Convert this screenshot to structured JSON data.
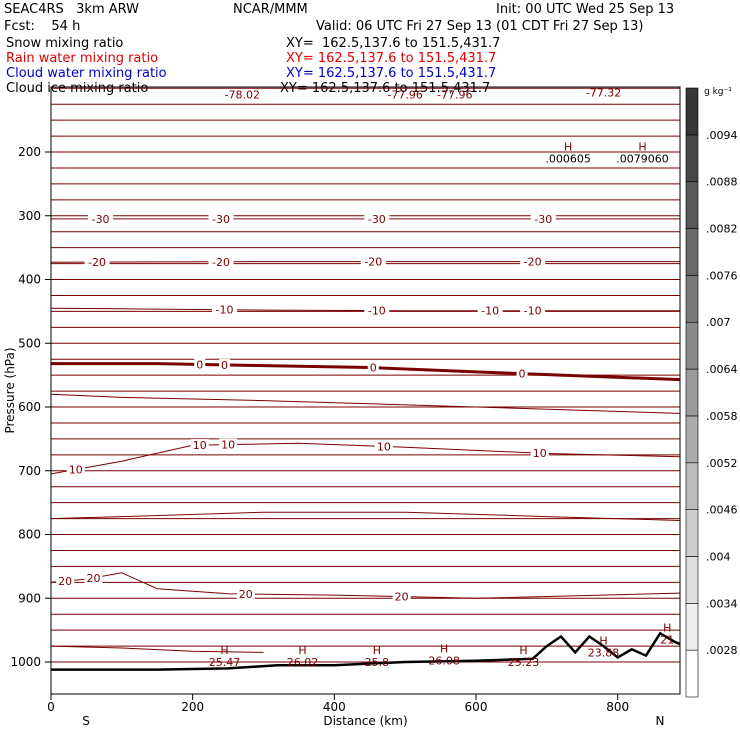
{
  "header": {
    "model": "SEAC4RS   3km ARW",
    "org": "NCAR/MMM",
    "init": "Init: 00 UTC Wed 25 Sep 13",
    "fcst": "Fcst:    54 h",
    "valid": "Valid: 06 UTC Fri 27 Sep 13 (01 CDT Fri 27 Sep 13)"
  },
  "fields": [
    {
      "name": "Snow mixing ratio",
      "xy": "XY=  162.5,137.6 to 151.5,431.7",
      "color": "#000000"
    },
    {
      "name": "Rain water mixing ratio",
      "xy": "XY= 162.5,137.6 to 151.5,431.7",
      "color": "#e00000"
    },
    {
      "name": "Cloud water mixing ratio",
      "xy": "XY= 162.5,137.6 to 151.5,431.7",
      "color": "#0000c8"
    },
    {
      "name": "Cloud ice mixing ratio",
      "xy": "XY= 162.5,137.6 to 151.5,431.7",
      "color": "#000000"
    }
  ],
  "chart_data": {
    "type": "line",
    "xlabel": "Distance (km)",
    "ylabel": "Pressure (hPa)",
    "xlim": [
      0,
      888
    ],
    "ylim": [
      1045,
      100
    ],
    "x_ticks": [
      0,
      200,
      400,
      600,
      800
    ],
    "y_ticks": [
      200,
      300,
      400,
      500,
      600,
      700,
      800,
      900,
      1000
    ],
    "left_end_label": "S",
    "right_end_label": "N",
    "pressure_levels": [
      1000,
      975,
      950,
      925,
      900,
      875,
      850,
      825,
      800,
      775,
      750,
      725,
      700,
      675,
      650,
      625,
      600,
      575,
      550,
      525,
      500,
      475,
      450,
      425,
      400,
      375,
      350,
      325,
      300,
      275,
      250,
      225,
      200,
      175,
      150,
      125,
      100
    ],
    "temperature_contour_color": "#7a0000",
    "colorbar": {
      "units": "g kg⁻¹",
      "labels": [
        ".0028",
        ".0034",
        ".004",
        ".0046",
        ".0052",
        ".0058",
        ".0064",
        ".007",
        ".0076",
        ".0082",
        ".0088",
        ".0094"
      ]
    },
    "temperature_contours": [
      {
        "label": "-30",
        "points": [
          [
            0,
            305
          ],
          [
            300,
            305
          ],
          [
            600,
            305
          ],
          [
            888,
            305
          ]
        ],
        "label_x": [
          70,
          240,
          460,
          695
        ]
      },
      {
        "label": "-20",
        "points": [
          [
            0,
            373
          ],
          [
            300,
            372
          ],
          [
            600,
            372
          ],
          [
            888,
            372
          ]
        ],
        "label_x": [
          65,
          240,
          455,
          680
        ]
      },
      {
        "label": "-10",
        "points": [
          [
            0,
            445
          ],
          [
            100,
            446
          ],
          [
            300,
            448
          ],
          [
            500,
            449
          ],
          [
            700,
            449
          ],
          [
            888,
            449
          ]
        ],
        "label_x": [
          245,
          460,
          620,
          680
        ]
      },
      {
        "label": "0",
        "bold": true,
        "points": [
          [
            0,
            532
          ],
          [
            150,
            532
          ],
          [
            300,
            535
          ],
          [
            450,
            538
          ],
          [
            600,
            545
          ],
          [
            888,
            557
          ]
        ],
        "label_x": [
          210,
          245,
          455,
          665
        ]
      },
      {
        "label": "10",
        "points": [
          [
            0,
            705
          ],
          [
            100,
            685
          ],
          [
            200,
            660
          ],
          [
            350,
            657
          ],
          [
            500,
            663
          ],
          [
            700,
            673
          ],
          [
            888,
            678
          ]
        ],
        "label_x": [
          35,
          210,
          250,
          470,
          690
        ]
      },
      {
        "label": "20",
        "points": [
          [
            0,
            875
          ],
          [
            50,
            870
          ],
          [
            100,
            860
          ],
          [
            150,
            885
          ],
          [
            250,
            893
          ],
          [
            400,
            895
          ],
          [
            600,
            900
          ],
          [
            888,
            892
          ]
        ],
        "label_x": [
          20,
          60,
          275,
          495
        ]
      }
    ],
    "other_contours": [
      {
        "points": [
          [
            0,
            580
          ],
          [
            100,
            585
          ],
          [
            300,
            590
          ],
          [
            600,
            600
          ],
          [
            888,
            610
          ]
        ]
      },
      {
        "points": [
          [
            0,
            775
          ],
          [
            100,
            772
          ],
          [
            300,
            765
          ],
          [
            500,
            765
          ],
          [
            700,
            772
          ],
          [
            888,
            778
          ]
        ]
      },
      {
        "points": [
          [
            0,
            975
          ],
          [
            100,
            978
          ],
          [
            200,
            983
          ],
          [
            300,
            985
          ]
        ]
      }
    ],
    "upper_labels": [
      {
        "label": "-78.02",
        "x": 270,
        "p": 110
      },
      {
        "label": "-77.96",
        "x": 500,
        "p": 110
      },
      {
        "label": "-77.96",
        "x": 570,
        "p": 110
      },
      {
        "label": "-77.32",
        "x": 780,
        "p": 107
      }
    ],
    "highs": [
      {
        "label": ".000605",
        "x": 730,
        "p": 210
      },
      {
        "label": ".0079060",
        "x": 835,
        "p": 210
      },
      {
        "label": "25.47",
        "x": 245,
        "p": 1000
      },
      {
        "label": "26.02",
        "x": 355,
        "p": 1000
      },
      {
        "label": "25.8",
        "x": 460,
        "p": 1000
      },
      {
        "label": "26.08",
        "x": 555,
        "p": 998
      },
      {
        "label": "25.23",
        "x": 667,
        "p": 1000
      },
      {
        "label": "23.88",
        "x": 780,
        "p": 985
      },
      {
        "label": "21",
        "x": 870,
        "p": 965
      }
    ],
    "terrain": [
      [
        0,
        1012
      ],
      [
        150,
        1012
      ],
      [
        250,
        1010
      ],
      [
        320,
        1005
      ],
      [
        400,
        1005
      ],
      [
        500,
        1000
      ],
      [
        600,
        998
      ],
      [
        680,
        995
      ],
      [
        700,
        975
      ],
      [
        720,
        960
      ],
      [
        740,
        985
      ],
      [
        760,
        960
      ],
      [
        780,
        975
      ],
      [
        800,
        993
      ],
      [
        820,
        980
      ],
      [
        840,
        990
      ],
      [
        860,
        955
      ],
      [
        880,
        968
      ],
      [
        888,
        972
      ]
    ]
  }
}
